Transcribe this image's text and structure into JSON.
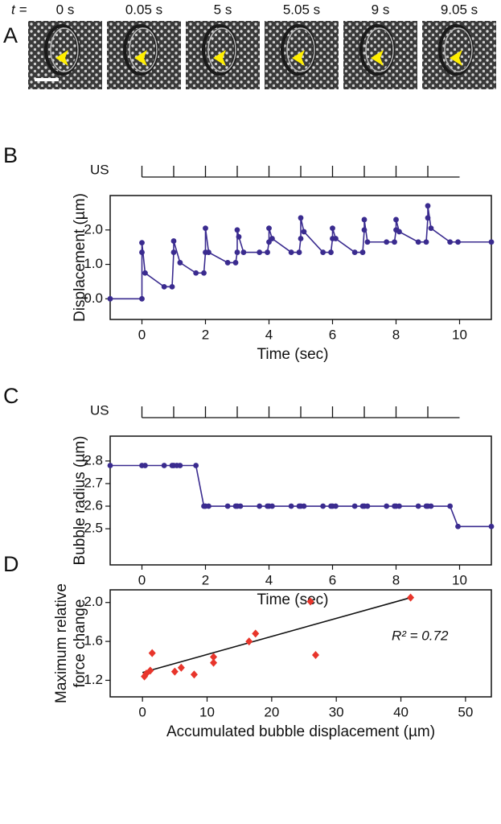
{
  "panel_a": {
    "label": "A",
    "t_label": "t =",
    "times": [
      "0 s",
      "0.05 s",
      "5 s",
      "5.05 s",
      "9 s",
      "9.05 s"
    ]
  },
  "chart_data": [
    {
      "type": "line",
      "label": "B",
      "y_label": [
        "Displacement (µm)"
      ],
      "x_label": "Time (sec)",
      "color": "#3a2b8f",
      "us_label": "US",
      "us_ticks": [
        0,
        1,
        2,
        3,
        4,
        5,
        6,
        7,
        8,
        9
      ],
      "us_end": 10,
      "xlim": [
        -1,
        11
      ],
      "xticks": [
        0,
        2,
        4,
        6,
        8,
        10
      ],
      "ylim": [
        -0.6,
        3.0
      ],
      "yticks": [
        {
          "value": 0,
          "label": "0.0"
        },
        {
          "value": 1,
          "label": "1.0"
        },
        {
          "value": 2,
          "label": "2.0"
        }
      ],
      "x": [
        -1,
        0,
        0,
        0,
        0.1,
        0.7,
        0.95,
        1,
        1,
        1.2,
        1.7,
        1.95,
        2,
        2,
        2.1,
        2.7,
        2.95,
        3,
        3,
        3.05,
        3.2,
        3.7,
        3.95,
        4,
        4,
        4.1,
        4.7,
        4.95,
        5,
        5,
        5.1,
        5.7,
        5.95,
        6,
        6,
        6.1,
        6.7,
        6.95,
        7,
        7,
        7.1,
        7.7,
        7.95,
        8,
        8,
        8.1,
        8.7,
        8.95,
        9,
        9,
        9.1,
        9.7,
        9.95,
        11
      ],
      "values": [
        0,
        0,
        1.35,
        1.63,
        0.75,
        0.35,
        0.35,
        1.35,
        1.68,
        1.05,
        0.75,
        0.75,
        1.35,
        2.05,
        1.35,
        1.05,
        1.05,
        1.35,
        2.0,
        1.8,
        1.35,
        1.35,
        1.35,
        1.65,
        2.05,
        1.75,
        1.35,
        1.35,
        1.75,
        2.35,
        1.95,
        1.35,
        1.35,
        1.75,
        2.05,
        1.75,
        1.35,
        1.35,
        2.0,
        2.3,
        1.65,
        1.65,
        1.65,
        2.0,
        2.3,
        1.95,
        1.65,
        1.65,
        2.35,
        2.7,
        2.05,
        1.65,
        1.65,
        1.65
      ]
    },
    {
      "type": "line",
      "label": "C",
      "y_label": [
        "Bubble radius (µm)"
      ],
      "x_label": "Time (sec)",
      "color": "#3a2b8f",
      "us_label": "US",
      "us_ticks": [
        0,
        1,
        2,
        3,
        4,
        5,
        6,
        7,
        8,
        9
      ],
      "us_end": 10,
      "xlim": [
        -1,
        11
      ],
      "xticks": [
        0,
        2,
        4,
        6,
        8,
        10
      ],
      "ylim": [
        2.34,
        2.91
      ],
      "yticks": [
        2.5,
        2.6,
        2.7,
        2.8
      ],
      "x": [
        -1,
        0,
        0.1,
        0.7,
        0.95,
        1,
        1.1,
        1.2,
        1.7,
        1.95,
        2,
        2.1,
        2.7,
        2.95,
        3,
        3.1,
        3.7,
        3.95,
        4,
        4.1,
        4.7,
        4.95,
        5,
        5.1,
        5.7,
        5.95,
        6,
        6.1,
        6.7,
        6.95,
        7,
        7.1,
        7.7,
        7.95,
        8,
        8.1,
        8.7,
        8.95,
        9,
        9.1,
        9.7,
        9.95,
        11
      ],
      "values": [
        2.78,
        2.78,
        2.78,
        2.78,
        2.78,
        2.78,
        2.78,
        2.78,
        2.78,
        2.6,
        2.6,
        2.6,
        2.6,
        2.6,
        2.6,
        2.6,
        2.6,
        2.6,
        2.6,
        2.6,
        2.6,
        2.6,
        2.6,
        2.6,
        2.6,
        2.6,
        2.6,
        2.6,
        2.6,
        2.6,
        2.6,
        2.6,
        2.6,
        2.6,
        2.6,
        2.6,
        2.6,
        2.6,
        2.6,
        2.6,
        2.6,
        2.51,
        2.51
      ]
    },
    {
      "type": "scatter",
      "label": "D",
      "y_label": [
        "Maximum relative",
        "force change"
      ],
      "x_label": "Accumulated bubble displacement (µm)",
      "color": "#e8352b",
      "xlim": [
        -5,
        54
      ],
      "xticks": [
        0,
        10,
        20,
        30,
        40,
        50
      ],
      "ylim": [
        1.03,
        2.13
      ],
      "yticks": [
        1.2,
        1.6,
        {
          "value": 2,
          "label": "2.0"
        }
      ],
      "x": [
        0.3,
        0.6,
        1.2,
        1.5,
        5,
        6,
        8,
        11,
        11,
        16.5,
        17.5,
        26,
        26.8,
        41.5
      ],
      "values": [
        1.24,
        1.27,
        1.3,
        1.48,
        1.29,
        1.33,
        1.26,
        1.38,
        1.44,
        1.6,
        1.68,
        2.01,
        1.46,
        2.05
      ],
      "fit": {
        "x": [
          0,
          41.5
        ],
        "values": [
          1.28,
          2.05
        ]
      },
      "annotation": "R² = 0.72"
    }
  ]
}
